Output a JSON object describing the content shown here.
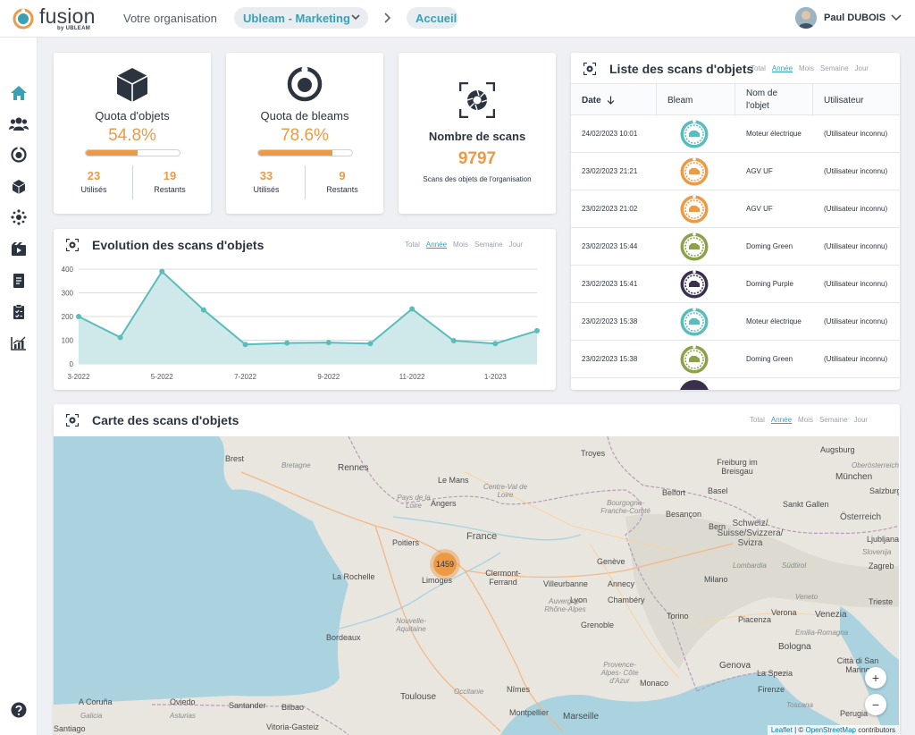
{
  "topbar": {
    "logo_word": "fusion",
    "logo_sub": "by UBLEAM",
    "org_label": "Votre organisation",
    "org_selected": "Ubleam - Marketing",
    "breadcrumb_home": "Accueil",
    "user_name": "Paul DUBOIS"
  },
  "sidebar": {
    "items": [
      "home-icon",
      "users-icon",
      "bleam-icon",
      "cube-icon",
      "network-icon",
      "media-icon",
      "document-icon",
      "clipboard-icon",
      "analytics-icon",
      "help-icon"
    ],
    "active": "home-icon"
  },
  "quota_objects": {
    "title": "Quota d'objets",
    "percent": "54.8%",
    "fill": 0.548,
    "used": "23",
    "used_label": "Utilisés",
    "remaining": "19",
    "remaining_label": "Restants"
  },
  "quota_bleams": {
    "title": "Quota de bleams",
    "percent": "78.6%",
    "fill": 0.786,
    "used": "33",
    "used_label": "Utilisés",
    "remaining": "9",
    "remaining_label": "Restants"
  },
  "scans": {
    "title": "Nombre de scans",
    "value": "9797",
    "caption": "Scans des objets de l'organisation"
  },
  "filters": [
    "Total",
    "Année",
    "Mois",
    "Semaine",
    "Jour"
  ],
  "filters_active": "Année",
  "evolution": {
    "title": "Evolution des scans d'objets"
  },
  "chart_data": {
    "type": "area",
    "title": "Evolution des scans d'objets",
    "x": [
      "3-2022",
      "4-2022",
      "5-2022",
      "6-2022",
      "7-2022",
      "8-2022",
      "9-2022",
      "10-2022",
      "11-2022",
      "12-2022",
      "1-2023",
      "2-2023"
    ],
    "x_tick_labels": [
      "3-2022",
      "5-2022",
      "7-2022",
      "9-2022",
      "11-2022",
      "1-2023"
    ],
    "series": [
      {
        "values": [
          200,
          112,
          390,
          228,
          82,
          88,
          90,
          86,
          232,
          98,
          86,
          140
        ]
      }
    ],
    "ylim": [
      0,
      400
    ],
    "yticks": [
      0,
      100,
      200,
      300,
      400
    ],
    "grid": true,
    "color": "#5bbcbc",
    "fill": "#cfe9ea"
  },
  "scan_list": {
    "title": "Liste des scans d'objets",
    "columns": [
      "Date",
      "Bleam",
      "Nom de l'objet",
      "Utilisateur"
    ],
    "rows": [
      {
        "date": "24/02/2023 10:01",
        "bleam_color": "#5bbcbc",
        "object": "Moteur électrique",
        "user": "(Utilisateur inconnu)"
      },
      {
        "date": "23/02/2023 21:21",
        "bleam_color": "#ec9a45",
        "object": "AGV UF",
        "user": "(Utilisateur inconnu)"
      },
      {
        "date": "23/02/2023 21:02",
        "bleam_color": "#ec9a45",
        "object": "AGV UF",
        "user": "(Utilisateur inconnu)"
      },
      {
        "date": "23/02/2023 15:44",
        "bleam_color": "#8ba24a",
        "object": "Doming Green",
        "user": "(Utilisateur inconnu)"
      },
      {
        "date": "23/02/2023 15:41",
        "bleam_color": "#3b2f4e",
        "object": "Doming Purple",
        "user": "(Utilisateur inconnu)"
      },
      {
        "date": "23/02/2023 15:38",
        "bleam_color": "#5bbcbc",
        "object": "Moteur électrique",
        "user": "(Utilisateur inconnu)"
      },
      {
        "date": "23/02/2023 15:38",
        "bleam_color": "#8ba24a",
        "object": "Doming Green",
        "user": "(Utilisateur inconnu)"
      }
    ]
  },
  "map": {
    "title": "Carte des scans d'objets",
    "cluster_count": "1459",
    "zoom_in": "+",
    "zoom_out": "−",
    "attribution_leaflet": "Leaflet",
    "attribution_sep": " | © ",
    "attribution_osm": "OpenStreetMap",
    "attribution_tail": " contributors",
    "labels": {
      "brest": "Brest",
      "bretagne": "Bretagne",
      "rennes": "Rennes",
      "le_mans": "Le Mans",
      "troyes": "Troyes",
      "freiburg": "Freiburg im Breisgau",
      "augsburg": "Augsburg",
      "munchen": "München",
      "salzburg": "Salzburg",
      "pays_de_la_loire": "Pays de la Loire",
      "angers": "Angers",
      "centre_val": "Centre-Val de Loire",
      "bourgogne": "Bourgogne-Franche-Comté",
      "belfort": "Belfort",
      "basel": "Basel",
      "bern": "Bern",
      "besancon": "Besançon",
      "schweiz": "Schweiz/ Suisse/Svizzera/ Svizra",
      "sankt_gallen": "Sankt Gallen",
      "france": "France",
      "poitiers": "Poitiers",
      "geneve": "Genève",
      "la_rochelle": "La Rochelle",
      "limoges": "Limoges",
      "clermont": "Clermont- Ferrand",
      "villeurbanne": "Villeurbanne",
      "lyon": "Lyon",
      "annecy": "Annecy",
      "auvergne": "Auvergne- Rhône-Alpes",
      "chambery": "Chambéry",
      "nouvelle_aquitaine": "Nouvelle- Aquitaine",
      "grenoble": "Grenoble",
      "torino": "Torino",
      "milano": "Milano",
      "piacenza": "Piacenza",
      "verona": "Verona",
      "venezia": "Venezia",
      "bordeaux": "Bordeaux",
      "bologna": "Bologna",
      "provence": "Provence- Alpes- Côte d'Azur",
      "genova": "Genova",
      "la_spezia": "La Spezia",
      "citta_sm": "Città di San Marino",
      "monaco": "Monaco",
      "toulouse": "Toulouse",
      "occitanie": "Occitanie",
      "montpellier": "Montpellier",
      "nimes": "Nîmes",
      "firenze": "Firenze",
      "marseille": "Marseille",
      "a_coruna": "A Coruña",
      "galicia": "Galicia",
      "santander": "Santander",
      "oviedo": "Oviedo",
      "asturias": "Asturias",
      "bilbao": "Bilbao",
      "vitoria": "Vitoria-Gasteiz",
      "santiago": "Santiago",
      "perugia": "Perugia",
      "trieste": "Trieste",
      "lombardia": "Lombardia",
      "emilia": "Emilia-Romagna",
      "toscana": "Toscana",
      "veneto": "Veneto",
      "sudtirol": "Südtirol",
      "oberosterreich": "Oberösterreich",
      "osterreich": "Österreich",
      "zagreb": "Zagreb",
      "ljubljana": "Ljubljana",
      "slovenija": "Slovenija"
    }
  }
}
